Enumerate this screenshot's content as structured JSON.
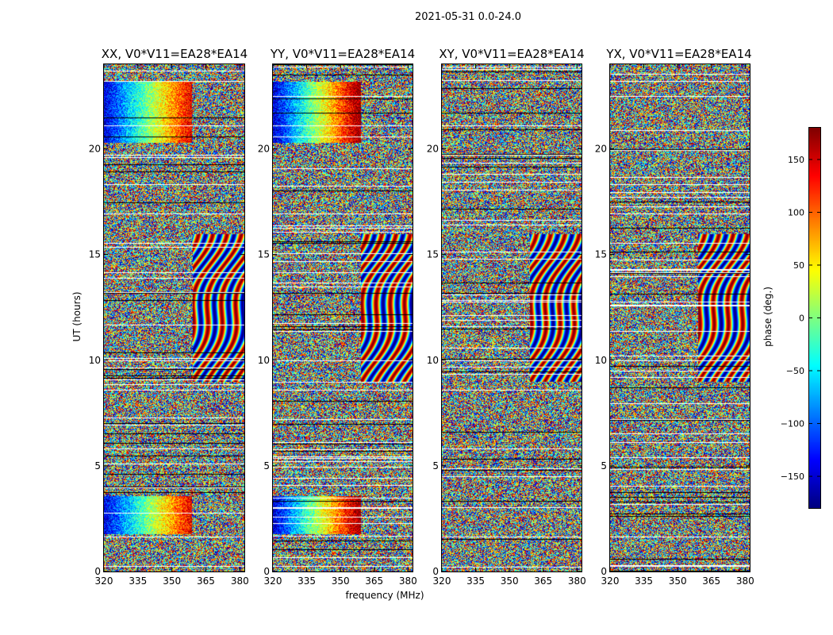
{
  "suptitle": "2021-05-31 0.0-24.0",
  "chart_data": [
    {
      "type": "heatmap",
      "title": "XX, V0*V11=EA28*EA14",
      "xlabel": "frequency (MHz)",
      "ylabel": "UT (hours)",
      "xlim": [
        320,
        382
      ],
      "ylim": [
        0,
        24
      ],
      "xticks": [
        320,
        335,
        350,
        365,
        380
      ],
      "yticks": [
        0,
        5,
        10,
        15,
        20
      ]
    },
    {
      "type": "heatmap",
      "title": "YY, V0*V11=EA28*EA14",
      "xlabel": "frequency (MHz)",
      "ylabel": "UT (hours)",
      "xlim": [
        320,
        382
      ],
      "ylim": [
        0,
        24
      ],
      "xticks": [
        320,
        335,
        350,
        365,
        380
      ],
      "yticks": [
        0,
        5,
        10,
        15,
        20
      ]
    },
    {
      "type": "heatmap",
      "title": "XY, V0*V11=EA28*EA14",
      "xlabel": "frequency (MHz)",
      "ylabel": "UT (hours)",
      "xlim": [
        320,
        382
      ],
      "ylim": [
        0,
        24
      ],
      "xticks": [
        320,
        335,
        350,
        365,
        380
      ],
      "yticks": [
        0,
        5,
        10,
        15,
        20
      ]
    },
    {
      "type": "heatmap",
      "title": "YX, V0*V11=EA28*EA14",
      "xlabel": "frequency (MHz)",
      "ylabel": "UT (hours)",
      "xlim": [
        320,
        382
      ],
      "ylim": [
        0,
        24
      ],
      "xticks": [
        320,
        335,
        350,
        365,
        380
      ],
      "yticks": [
        0,
        5,
        10,
        15,
        20
      ]
    }
  ],
  "colorbar": {
    "label": "phase (deg.)",
    "range": [
      -180,
      180
    ],
    "ticks": [
      -150,
      -100,
      -50,
      0,
      50,
      100,
      150
    ],
    "tick_labels": [
      "−150",
      "−100",
      "−50",
      "0",
      "50",
      "100",
      "150"
    ],
    "colormap": "jet"
  },
  "labels": {
    "xlabel": "frequency (MHz)",
    "ylabel": "UT (hours)"
  }
}
